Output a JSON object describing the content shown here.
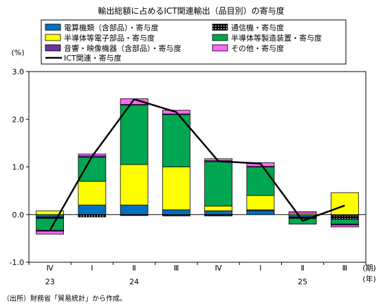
{
  "chart_data": {
    "type": "bar",
    "title": "輸出総額に占めるICT関連輸出（品目別）の寄与度",
    "ylabel": "(%)",
    "xlabel": "(期)",
    "year_unit": "(年)",
    "note": "（出所）財務省「貿易統計」から作成。",
    "ylim": [
      -1.0,
      3.0
    ],
    "yticks": [
      -1.0,
      0.0,
      1.0,
      2.0,
      3.0
    ],
    "ytick_labels": [
      "-1.0",
      "0.0",
      "1.0",
      "2.0",
      "3.0"
    ],
    "categories": [
      "Ⅳ",
      "Ⅰ",
      "Ⅱ",
      "Ⅲ",
      "Ⅳ",
      "Ⅰ",
      "Ⅱ",
      "Ⅲ"
    ],
    "years": [
      {
        "label": "23",
        "index": 0
      },
      {
        "label": "24",
        "index": 2
      },
      {
        "label": "25",
        "index": 6
      }
    ],
    "grid": false,
    "legend_position": "top",
    "series": [
      {
        "name": "電算機類（含部品）・寄与度",
        "color": "#0070c0",
        "pattern": "solid",
        "values": [
          -0.05,
          0.2,
          0.2,
          0.1,
          0.08,
          0.08,
          -0.05,
          -0.02
        ]
      },
      {
        "name": "通信機・寄与度",
        "color": "#000000",
        "pattern": "dots",
        "values": [
          -0.03,
          -0.05,
          -0.02,
          -0.03,
          -0.03,
          0.02,
          -0.03,
          -0.08
        ]
      },
      {
        "name": "半導体等電子部品・寄与度",
        "color": "#ffff00",
        "pattern": "solid",
        "values": [
          0.08,
          0.5,
          0.85,
          0.9,
          0.1,
          0.3,
          0.03,
          0.46
        ]
      },
      {
        "name": "半導体等製造装置・寄与度",
        "color": "#00a651",
        "pattern": "solid",
        "values": [
          -0.25,
          0.5,
          1.25,
          1.1,
          0.93,
          0.6,
          -0.12,
          -0.1
        ]
      },
      {
        "name": "音響・映像機器（含部品）・寄与度",
        "color": "#7030a0",
        "pattern": "solid",
        "values": [
          -0.02,
          0.03,
          0.01,
          0.01,
          0.02,
          0.01,
          0.0,
          -0.02
        ]
      },
      {
        "name": "その他・寄与度",
        "color": "#ff66ff",
        "pattern": "solid",
        "values": [
          -0.06,
          0.04,
          0.12,
          0.08,
          0.04,
          0.08,
          0.03,
          -0.04
        ]
      }
    ],
    "line": {
      "name": "ICT関連・寄与度",
      "color": "#000000",
      "values": [
        -0.33,
        1.22,
        2.42,
        2.15,
        1.12,
        1.07,
        -0.13,
        0.19
      ]
    }
  }
}
